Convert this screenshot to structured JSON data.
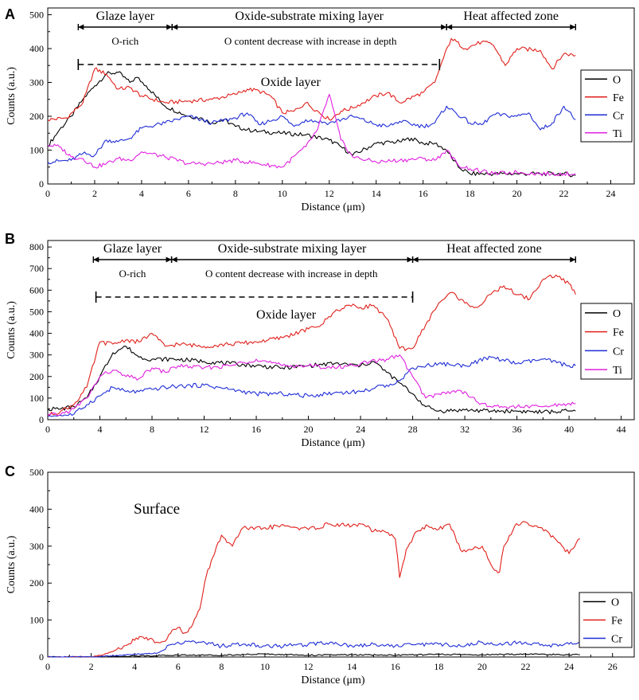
{
  "chart_data": [
    {
      "type": "line",
      "panel_label": "A",
      "xlabel": "Distance (μm)",
      "ylabel": "Counts (a.u.)",
      "xlim": [
        0,
        25
      ],
      "ylim": [
        0,
        520
      ],
      "xticks": [
        0,
        2,
        4,
        6,
        8,
        10,
        12,
        14,
        16,
        18,
        20,
        22,
        24
      ],
      "yticks": [
        0,
        100,
        200,
        300,
        400,
        500
      ],
      "legend_position": "right",
      "zones": [
        {
          "label": "Glaze layer",
          "x0": 1.3,
          "x1": 5.3
        },
        {
          "label": "Oxide-substrate mixing layer",
          "x0": 5.3,
          "x1": 17.0
        },
        {
          "label": "Heat affected zone",
          "x0": 17.0,
          "x1": 22.5
        }
      ],
      "sublabels": [
        {
          "text": "O-rich",
          "x": 3.3
        },
        {
          "text": "O content decrease with increase in depth",
          "x": 11.2
        }
      ],
      "bracket": {
        "label": "Oxide layer",
        "x0": 1.3,
        "x1": 16.7
      },
      "series": [
        {
          "name": "O",
          "color": "#000000",
          "x": [
            0,
            0.5,
            1,
            1.5,
            2,
            2.5,
            3,
            3.5,
            3.8,
            4.2,
            5,
            6,
            6.5,
            7,
            7.5,
            8,
            8.5,
            9,
            10,
            11,
            12,
            12.5,
            13,
            14,
            15,
            15.5,
            16,
            16.5,
            17,
            17.5,
            18,
            19,
            20,
            21,
            22,
            22.5
          ],
          "y": [
            112,
            160,
            200,
            250,
            290,
            325,
            330,
            300,
            315,
            290,
            230,
            200,
            195,
            180,
            190,
            170,
            160,
            155,
            150,
            145,
            130,
            110,
            85,
            120,
            125,
            135,
            120,
            120,
            100,
            50,
            30,
            30,
            30,
            30,
            30,
            25
          ]
        },
        {
          "name": "Fe",
          "color": "#e0201b",
          "x": [
            0,
            0.8,
            1.5,
            2,
            2.5,
            3,
            3.5,
            4,
            5,
            6,
            7,
            8,
            8.5,
            9,
            9.5,
            10,
            10.5,
            11,
            12,
            12.5,
            13,
            14,
            14.5,
            15,
            16,
            16.5,
            16.8,
            17.2,
            17.8,
            18.5,
            19,
            19.5,
            20,
            21,
            21.5,
            22,
            22.5
          ],
          "y": [
            190,
            195,
            240,
            340,
            325,
            280,
            285,
            260,
            240,
            245,
            250,
            265,
            280,
            275,
            260,
            210,
            215,
            240,
            190,
            215,
            225,
            260,
            270,
            240,
            270,
            300,
            360,
            430,
            400,
            420,
            410,
            350,
            400,
            395,
            340,
            385,
            380
          ]
        },
        {
          "name": "Cr",
          "color": "#1f2dd6",
          "x": [
            0,
            1,
            1.5,
            2,
            2.5,
            3,
            3.5,
            4,
            5,
            6,
            7,
            8,
            8.5,
            9,
            10,
            10.5,
            11,
            12,
            13,
            14,
            14.5,
            15,
            16,
            16.5,
            17,
            18,
            18.5,
            19,
            20,
            20.5,
            21,
            21.5,
            22,
            22.5
          ],
          "y": [
            65,
            70,
            90,
            85,
            130,
            125,
            135,
            165,
            180,
            200,
            180,
            195,
            210,
            175,
            200,
            170,
            190,
            180,
            200,
            175,
            170,
            185,
            170,
            180,
            230,
            180,
            175,
            205,
            200,
            210,
            160,
            180,
            230,
            190
          ]
        },
        {
          "name": "Ti",
          "color": "#e020e0",
          "x": [
            0,
            0.5,
            1,
            1.5,
            2,
            2.5,
            3,
            3.5,
            4,
            5,
            6,
            7,
            8,
            9,
            10,
            11,
            11.5,
            12,
            12.5,
            13,
            14,
            15,
            16,
            16.5,
            17,
            17.5,
            18,
            19,
            20,
            21,
            22,
            22.5
          ],
          "y": [
            115,
            110,
            80,
            75,
            50,
            60,
            75,
            70,
            95,
            80,
            60,
            60,
            70,
            60,
            50,
            110,
            160,
            265,
            130,
            80,
            65,
            70,
            75,
            70,
            100,
            55,
            45,
            30,
            35,
            30,
            30,
            30
          ]
        }
      ]
    },
    {
      "type": "line",
      "panel_label": "B",
      "xlabel": "Distance (μm)",
      "ylabel": "Counts (a.u.)",
      "xlim": [
        0,
        45
      ],
      "ylim": [
        0,
        830
      ],
      "xticks": [
        0,
        4,
        8,
        12,
        16,
        20,
        24,
        28,
        32,
        36,
        40,
        44
      ],
      "yticks": [
        0,
        100,
        200,
        300,
        400,
        500,
        600,
        700,
        800
      ],
      "legend_position": "right",
      "zones": [
        {
          "label": "Glaze layer",
          "x0": 3.5,
          "x1": 9.5
        },
        {
          "label": "Oxide-substrate mixing layer",
          "x0": 9.5,
          "x1": 28.0
        },
        {
          "label": "Heat affected zone",
          "x0": 28.0,
          "x1": 40.5
        }
      ],
      "sublabels": [
        {
          "text": "O-rich",
          "x": 6.5
        },
        {
          "text": "O content decrease with increase in depth",
          "x": 18.7
        }
      ],
      "bracket": {
        "label": "Oxide layer",
        "x0": 3.7,
        "x1": 28.0
      },
      "series": [
        {
          "name": "O",
          "color": "#000000",
          "x": [
            0,
            1,
            2,
            3,
            4,
            5,
            6,
            7,
            8,
            10,
            12,
            14,
            16,
            18,
            20,
            22,
            24,
            25,
            26,
            27,
            28,
            29,
            30,
            32,
            34,
            36,
            38,
            40,
            40.5
          ],
          "y": [
            50,
            50,
            60,
            100,
            200,
            310,
            340,
            290,
            280,
            280,
            270,
            260,
            250,
            240,
            250,
            260,
            250,
            270,
            220,
            170,
            120,
            60,
            40,
            45,
            40,
            40,
            35,
            40,
            40
          ]
        },
        {
          "name": "Fe",
          "color": "#e0201b",
          "x": [
            0,
            1,
            2,
            3,
            4,
            5,
            6,
            7,
            8,
            8.5,
            9,
            10,
            12,
            14,
            16,
            18,
            20,
            21,
            22,
            23,
            24,
            25,
            26,
            27,
            28,
            29,
            30,
            31,
            32,
            33,
            34,
            35,
            36,
            37,
            38,
            39,
            40,
            40.5
          ],
          "y": [
            20,
            40,
            70,
            150,
            360,
            350,
            370,
            360,
            400,
            370,
            340,
            350,
            340,
            350,
            360,
            380,
            420,
            440,
            500,
            530,
            520,
            530,
            470,
            330,
            330,
            440,
            540,
            590,
            540,
            520,
            580,
            620,
            580,
            560,
            650,
            670,
            630,
            580
          ]
        },
        {
          "name": "Cr",
          "color": "#1f2dd6",
          "x": [
            0,
            1,
            2,
            3,
            4,
            5,
            6,
            7,
            8,
            9,
            10,
            12,
            14,
            16,
            18,
            20,
            22,
            24,
            26,
            27,
            28,
            30,
            32,
            34,
            36,
            38,
            40,
            40.5
          ],
          "y": [
            15,
            20,
            25,
            70,
            110,
            150,
            130,
            130,
            140,
            150,
            155,
            160,
            140,
            120,
            120,
            110,
            125,
            130,
            160,
            180,
            240,
            260,
            250,
            290,
            260,
            280,
            250,
            250
          ]
        },
        {
          "name": "Ti",
          "color": "#e020e0",
          "x": [
            0,
            1,
            2,
            3,
            4,
            5,
            6,
            7,
            8,
            9,
            10,
            12,
            14,
            16,
            18,
            20,
            22,
            24,
            26,
            27,
            28,
            29,
            30,
            31,
            32,
            33,
            34,
            36,
            38,
            40,
            40.5
          ],
          "y": [
            20,
            25,
            50,
            100,
            200,
            230,
            200,
            190,
            240,
            220,
            250,
            240,
            250,
            280,
            250,
            250,
            240,
            260,
            280,
            300,
            200,
            100,
            120,
            130,
            130,
            80,
            60,
            60,
            60,
            75,
            75
          ]
        }
      ]
    },
    {
      "type": "line",
      "panel_label": "C",
      "annotation": "Surface",
      "xlabel": "Distance (μm)",
      "ylabel": "Counts (a.u.)",
      "xlim": [
        0,
        27
      ],
      "ylim": [
        0,
        500
      ],
      "xticks": [
        0,
        2,
        4,
        6,
        8,
        10,
        12,
        14,
        16,
        18,
        20,
        22,
        24,
        26
      ],
      "yticks": [
        0,
        100,
        200,
        300,
        400,
        500
      ],
      "legend_position": "right",
      "series": [
        {
          "name": "O",
          "color": "#000000",
          "x": [
            0,
            2,
            4,
            6,
            8,
            10,
            12,
            14,
            16,
            18,
            20,
            22,
            24,
            24.5
          ],
          "y": [
            0,
            0,
            3,
            5,
            5,
            8,
            5,
            6,
            5,
            7,
            6,
            8,
            6,
            6
          ]
        },
        {
          "name": "Fe",
          "color": "#e0201b",
          "x": [
            0,
            2,
            2.5,
            3,
            3.5,
            4,
            4.3,
            4.7,
            5,
            5.5,
            5.8,
            6,
            6.3,
            6.6,
            7,
            7.3,
            7.6,
            8,
            8.5,
            9,
            9.5,
            10,
            11,
            12,
            13,
            14,
            14.5,
            15,
            15.5,
            16,
            16.2,
            16.5,
            17,
            17.5,
            18,
            18.5,
            19,
            19.5,
            20,
            20.5,
            20.8,
            21,
            21.5,
            22,
            22.5,
            23,
            23.5,
            24,
            24.5
          ],
          "y": [
            0,
            0,
            5,
            15,
            30,
            45,
            55,
            50,
            40,
            50,
            75,
            80,
            65,
            80,
            130,
            220,
            270,
            330,
            300,
            350,
            345,
            350,
            355,
            345,
            360,
            355,
            360,
            340,
            340,
            320,
            215,
            290,
            340,
            355,
            345,
            360,
            290,
            290,
            300,
            240,
            230,
            300,
            355,
            365,
            355,
            340,
            310,
            280,
            320
          ]
        },
        {
          "name": "Cr",
          "color": "#1f2dd6",
          "x": [
            0,
            2,
            3,
            4,
            5,
            6,
            7,
            8,
            9,
            10,
            11,
            12,
            13,
            14,
            15,
            16,
            17,
            18,
            19,
            20,
            21,
            22,
            23,
            24,
            24.5
          ],
          "y": [
            0,
            0,
            3,
            8,
            10,
            40,
            40,
            30,
            35,
            30,
            30,
            35,
            40,
            30,
            35,
            30,
            35,
            35,
            30,
            40,
            35,
            40,
            30,
            35,
            40
          ]
        }
      ]
    }
  ]
}
